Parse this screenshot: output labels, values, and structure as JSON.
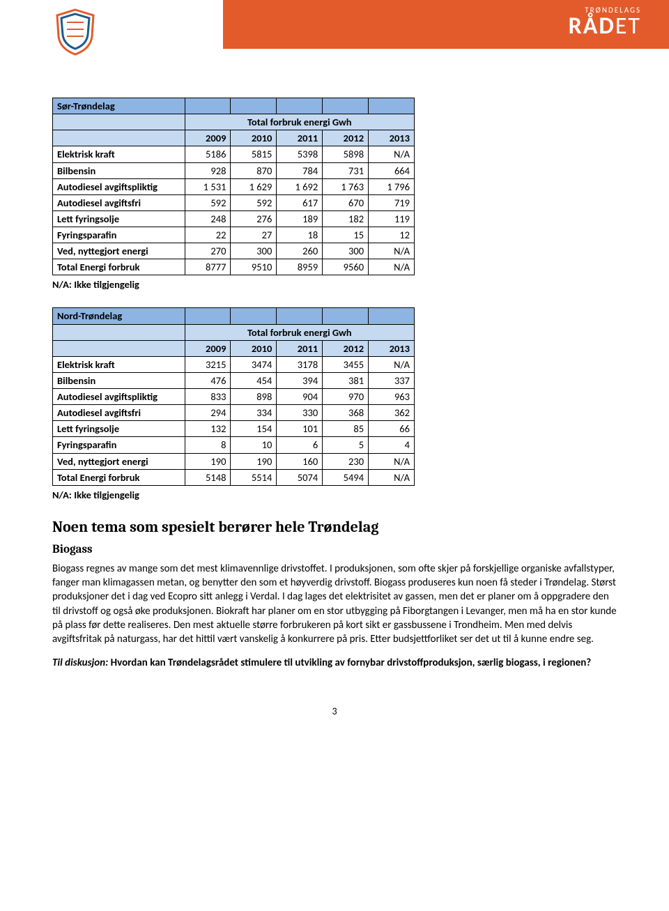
{
  "brand": {
    "top": "TRØNDELAGS",
    "main_bold": "RÅD",
    "main_light": "ET"
  },
  "table1": {
    "title": "Sør-Trøndelag",
    "span_label": "Total forbruk energi Gwh",
    "years": [
      "2009",
      "2010",
      "2011",
      "2012",
      "2013"
    ],
    "rows": [
      {
        "label": "Elektrisk kraft",
        "v": [
          "5186",
          "5815",
          "5398",
          "5898",
          "N/A"
        ]
      },
      {
        "label": "Bilbensin",
        "v": [
          "928",
          "870",
          "784",
          "731",
          "664"
        ]
      },
      {
        "label": "Autodiesel avgiftspliktig",
        "v": [
          "1 531",
          "1 629",
          "1 692",
          "1 763",
          "1 796"
        ]
      },
      {
        "label": "Autodiesel avgiftsfri",
        "v": [
          "592",
          "592",
          "617",
          "670",
          "719"
        ]
      },
      {
        "label": "Lett fyringsolje",
        "v": [
          "248",
          "276",
          "189",
          "182",
          "119"
        ]
      },
      {
        "label": "Fyringsparafin",
        "v": [
          "22",
          "27",
          "18",
          "15",
          "12"
        ]
      },
      {
        "label": "Ved, nyttegjort energi",
        "v": [
          "270",
          "300",
          "260",
          "300",
          "N/A"
        ]
      },
      {
        "label": "Total Energi forbruk",
        "v": [
          "8777",
          "9510",
          "8959",
          "9560",
          "N/A"
        ]
      }
    ],
    "note": "N/A: Ikke tilgjengelig"
  },
  "table2": {
    "title": "Nord-Trøndelag",
    "span_label": "Total forbruk energi Gwh",
    "years": [
      "2009",
      "2010",
      "2011",
      "2012",
      "2013"
    ],
    "rows": [
      {
        "label": "Elektrisk kraft",
        "v": [
          "3215",
          "3474",
          "3178",
          "3455",
          "N/A"
        ]
      },
      {
        "label": "Bilbensin",
        "v": [
          "476",
          "454",
          "394",
          "381",
          "337"
        ]
      },
      {
        "label": "Autodiesel avgiftspliktig",
        "v": [
          "833",
          "898",
          "904",
          "970",
          "963"
        ]
      },
      {
        "label": "Autodiesel avgiftsfri",
        "v": [
          "294",
          "334",
          "330",
          "368",
          "362"
        ]
      },
      {
        "label": "Lett fyringsolje",
        "v": [
          "132",
          "154",
          "101",
          "85",
          "66"
        ]
      },
      {
        "label": "Fyringsparafin",
        "v": [
          "8",
          "10",
          "6",
          "5",
          "4"
        ]
      },
      {
        "label": "Ved, nyttegjort energi",
        "v": [
          "190",
          "190",
          "160",
          "230",
          "N/A"
        ]
      },
      {
        "label": "Total Energi forbruk",
        "v": [
          "5148",
          "5514",
          "5074",
          "5494",
          "N/A"
        ]
      }
    ],
    "note": "N/A: Ikke tilgjengelig"
  },
  "section_heading": "Noen tema som spesielt berører hele Trøndelag",
  "sub_heading": "Biogass",
  "paragraph": "Biogass regnes av mange som det mest klimavennlige drivstoffet. I produksjonen, som ofte skjer på forskjellige organiske avfallstyper, fanger man klimagassen metan, og benytter den som et høyverdig drivstoff. Biogass produseres kun noen få steder i Trøndelag. Størst produksjoner det i dag ved Ecopro sitt anlegg i Verdal. I dag lages det elektrisitet av gassen, men det er planer om å oppgradere den til drivstoff og også øke produksjonen. Biokraft har planer om en stor utbygging på Fiborgtangen i Levanger, men må ha en stor kunde på plass før dette realiseres. Den mest aktuelle større forbrukeren på kort sikt er gassbussene i Trondheim. Men med delvis avgiftsfritak på naturgass, har det hittil vært vanskelig å konkurrere på pris. Etter budsjettforliket ser det ut til å kunne endre seg.",
  "discuss_lead": "Til diskusjon: ",
  "discuss_rest": "Hvordan kan Trøndelagsrådet stimulere til utvikling av fornybar drivstoffproduksjon, særlig biogass, i regionen?",
  "page_number": "3",
  "colors": {
    "header_band": "#e35b2b",
    "table_hdr": "#8db4e2",
    "table_sub": "#c5d9f1"
  }
}
